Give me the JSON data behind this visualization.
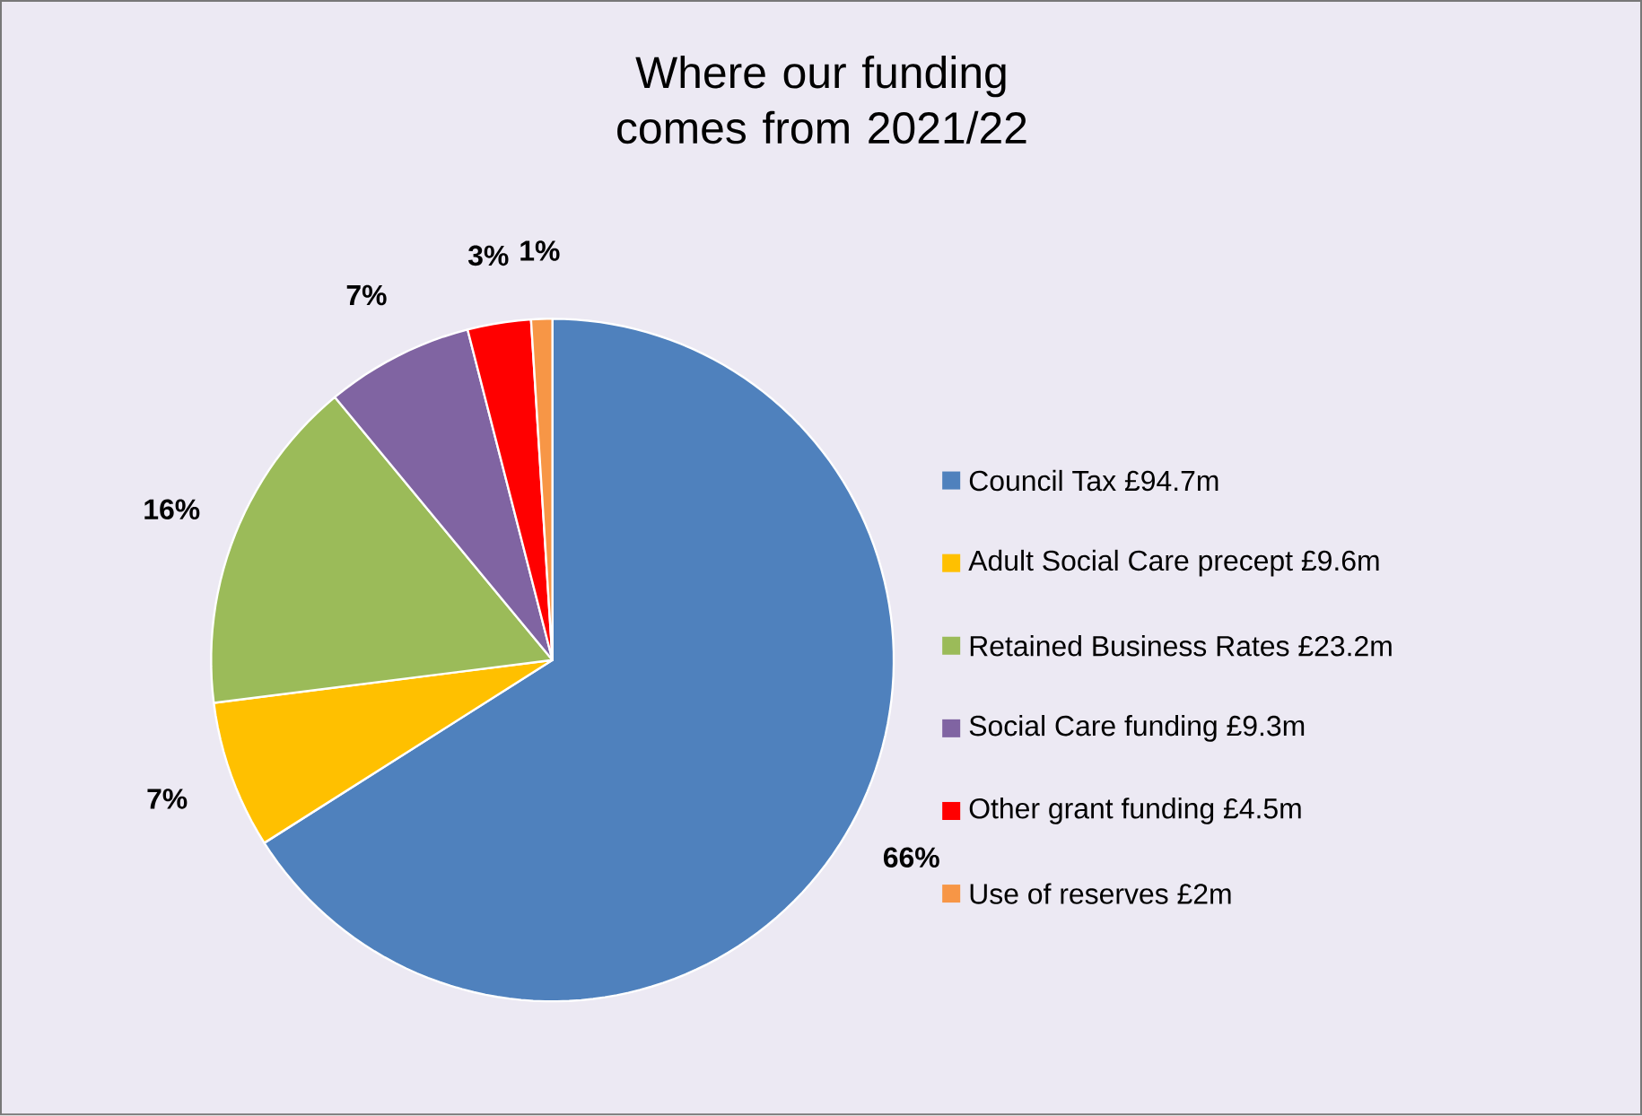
{
  "chart_data": {
    "type": "pie",
    "title": "Where our funding comes from 2021/22",
    "categories": [
      "Council Tax £94.7m",
      "Adult Social Care precept £9.6m",
      "Retained Business Rates £23.2m",
      "Social Care funding £9.3m",
      "Other grant funding £4.5m",
      "Use of reserves £2m"
    ],
    "values": [
      66,
      7,
      16,
      7,
      3,
      1
    ],
    "value_labels": [
      "66%",
      "7%",
      "16%",
      "7%",
      "3%",
      "1%"
    ],
    "colors": [
      "#4f81bd",
      "#ffc000",
      "#9bbb59",
      "#8064a2",
      "#ff0000",
      "#f79646"
    ],
    "legend": "right"
  }
}
